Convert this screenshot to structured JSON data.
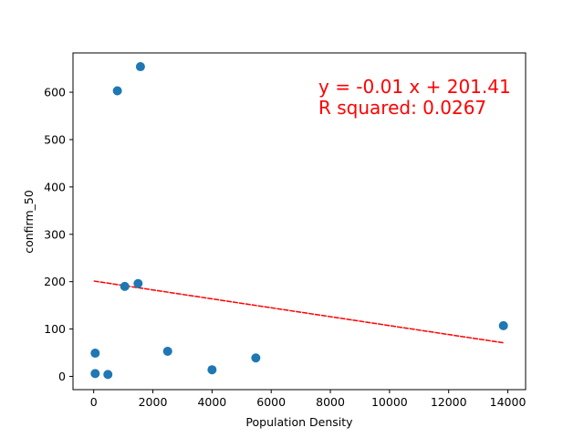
{
  "chart_data": {
    "type": "scatter",
    "title": "",
    "xlabel": "Population Density",
    "ylabel": "confirm_50",
    "xlim": [
      -700,
      14600
    ],
    "ylim": [
      -28,
      683
    ],
    "xticks": [
      0,
      2000,
      4000,
      6000,
      8000,
      10000,
      12000,
      14000
    ],
    "yticks": [
      0,
      100,
      200,
      300,
      400,
      500,
      600
    ],
    "grid": false,
    "legend": "none",
    "points": [
      {
        "x": 50,
        "y": 49
      },
      {
        "x": 50,
        "y": 6
      },
      {
        "x": 480,
        "y": 4
      },
      {
        "x": 800,
        "y": 603
      },
      {
        "x": 1050,
        "y": 190
      },
      {
        "x": 1500,
        "y": 196
      },
      {
        "x": 1580,
        "y": 654
      },
      {
        "x": 2500,
        "y": 53
      },
      {
        "x": 4000,
        "y": 14
      },
      {
        "x": 5480,
        "y": 39
      },
      {
        "x": 13850,
        "y": 107
      }
    ],
    "trendline": {
      "x": [
        0,
        13850
      ],
      "y": [
        201.41,
        70.91
      ]
    },
    "annotations": [
      "y = -0.01 x + 201.41",
      "R squared: 0.0267"
    ],
    "colors": {
      "points": "#1f77b4",
      "trendline": "#ff0000",
      "annotation": "#ff0000"
    }
  }
}
